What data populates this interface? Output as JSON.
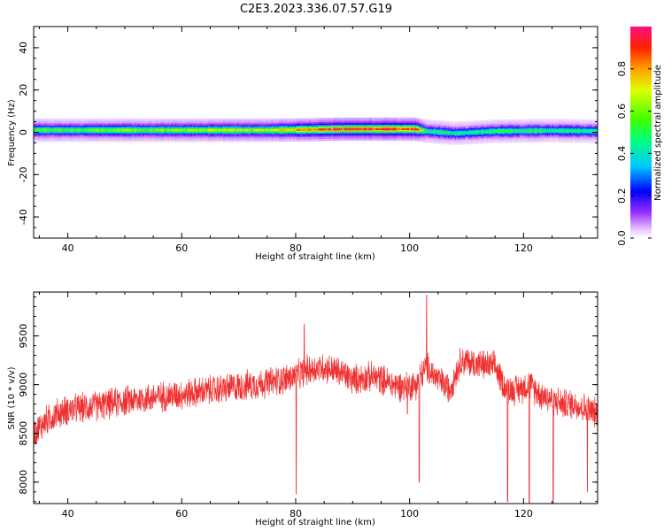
{
  "figure": {
    "title": "C2E3.2023.336.07.57.G19"
  },
  "colorbar": {
    "label": "Normalized spectral amplitude",
    "range": [
      0.0,
      1.0
    ],
    "ticks": [
      "0.0",
      "0.2",
      "0.4",
      "0.6",
      "0.8"
    ],
    "tick_values": [
      0.0,
      0.2,
      0.4,
      0.6,
      0.8
    ]
  },
  "chart_data": [
    {
      "type": "heatmap",
      "title": "",
      "xlabel": "Height of straight line (km)",
      "ylabel": "Frequency (Hz)",
      "xlim": [
        34,
        133
      ],
      "ylim": [
        -50,
        50
      ],
      "xticks": [
        40,
        60,
        80,
        100,
        120
      ],
      "xtick_labels": [
        "40",
        "60",
        "80",
        "100",
        "120"
      ],
      "yticks": [
        -40,
        -20,
        0,
        20,
        40
      ],
      "ytick_labels": [
        "-40",
        "-20",
        "0",
        "20",
        "40"
      ],
      "grid": false,
      "band": {
        "description_points": [
          {
            "x": 34,
            "center": 1.0,
            "peak": 0.55
          },
          {
            "x": 50,
            "center": 1.0,
            "peak": 0.6
          },
          {
            "x": 65,
            "center": 1.0,
            "peak": 0.65
          },
          {
            "x": 75,
            "center": 1.0,
            "peak": 0.7
          },
          {
            "x": 82,
            "center": 1.2,
            "peak": 0.8
          },
          {
            "x": 88,
            "center": 1.5,
            "peak": 0.92
          },
          {
            "x": 95,
            "center": 1.5,
            "peak": 0.95
          },
          {
            "x": 101,
            "center": 1.5,
            "peak": 0.9
          },
          {
            "x": 103,
            "center": 0.5,
            "peak": 0.5
          },
          {
            "x": 108,
            "center": -0.5,
            "peak": 0.45
          },
          {
            "x": 115,
            "center": 0.5,
            "peak": 0.5
          },
          {
            "x": 125,
            "center": 0.8,
            "peak": 0.5
          },
          {
            "x": 133,
            "center": 0.5,
            "peak": 0.45
          }
        ]
      }
    },
    {
      "type": "line",
      "title": "",
      "xlabel": "Height of straight line (km)",
      "ylabel": "SNR (10 * v/v)",
      "xlim": [
        34,
        133
      ],
      "ylim": [
        7780,
        9950
      ],
      "xticks": [
        40,
        60,
        80,
        100,
        120
      ],
      "xtick_labels": [
        "40",
        "60",
        "80",
        "100",
        "120"
      ],
      "yticks": [
        8000,
        8500,
        9000,
        9500
      ],
      "ytick_labels": [
        "8000",
        "8500",
        "9000",
        "9500"
      ],
      "grid": false,
      "series": [
        {
          "color": "#f03030",
          "x": [
            34,
            36,
            38,
            40,
            45,
            50,
            55,
            60,
            65,
            70,
            75,
            80,
            82,
            85,
            88,
            90,
            93,
            95,
            97,
            99,
            101,
            103,
            105,
            107,
            109,
            111,
            113,
            115,
            117,
            119,
            121,
            123,
            125,
            127,
            129,
            131,
            133
          ],
          "values": [
            8500,
            8620,
            8700,
            8740,
            8780,
            8830,
            8870,
            8900,
            8940,
            8980,
            9020,
            9080,
            9150,
            9180,
            9120,
            9050,
            9080,
            9060,
            9000,
            8980,
            9000,
            9180,
            9050,
            8950,
            9250,
            9220,
            9200,
            9180,
            8950,
            8950,
            9000,
            8900,
            8850,
            8800,
            8800,
            8750,
            8700
          ],
          "noise_amplitude": 150,
          "spikes": [
            {
              "x": 80.1,
              "value": 7880
            },
            {
              "x": 81.5,
              "value": 9620
            },
            {
              "x": 99.6,
              "value": 8700
            },
            {
              "x": 101.7,
              "value": 8000
            },
            {
              "x": 103.0,
              "value": 9920
            },
            {
              "x": 117.2,
              "value": 7800
            },
            {
              "x": 121.0,
              "value": 7770
            },
            {
              "x": 125.2,
              "value": 7780
            },
            {
              "x": 131.2,
              "value": 7900
            }
          ]
        }
      ]
    }
  ]
}
